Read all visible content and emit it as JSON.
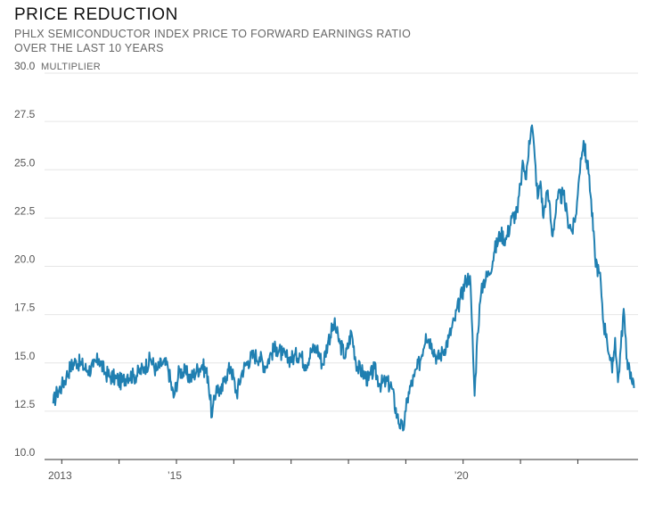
{
  "chart_data": {
    "type": "line",
    "title": "PRICE REDUCTION",
    "subtitle_line1": "PHLX SEMICONDUCTOR INDEX PRICE TO FORWARD EARNINGS RATIO",
    "subtitle_line2": "OVER THE LAST 10 YEARS",
    "unit_label": "MULTIPLIER",
    "ylim": [
      10.0,
      30.0
    ],
    "yticks": [
      "10.0",
      "12.5",
      "15.0",
      "17.5",
      "20.0",
      "22.5",
      "25.0",
      "27.5",
      "30.0"
    ],
    "xlim": [
      2012.7,
      2023.05
    ],
    "xticks": [
      {
        "label": "2013",
        "x": 2013
      },
      {
        "label": "’15",
        "x": 2015
      },
      {
        "label": "’20",
        "x": 2020
      }
    ],
    "xtick_marks": [
      2013,
      2014,
      2015,
      2016,
      2017,
      2018,
      2019,
      2020,
      2021,
      2022
    ],
    "series": [
      {
        "color": "#1f7fb1",
        "x": [
          2012.85,
          2012.92,
          2013.0,
          2013.08,
          2013.15,
          2013.25,
          2013.35,
          2013.45,
          2013.55,
          2013.65,
          2013.75,
          2013.85,
          2013.95,
          2014.05,
          2014.15,
          2014.25,
          2014.35,
          2014.45,
          2014.55,
          2014.65,
          2014.75,
          2014.85,
          2014.95,
          2015.05,
          2015.15,
          2015.25,
          2015.35,
          2015.45,
          2015.55,
          2015.62,
          2015.7,
          2015.78,
          2015.85,
          2015.95,
          2016.05,
          2016.15,
          2016.25,
          2016.35,
          2016.45,
          2016.55,
          2016.65,
          2016.75,
          2016.85,
          2016.95,
          2017.05,
          2017.15,
          2017.25,
          2017.35,
          2017.45,
          2017.55,
          2017.65,
          2017.75,
          2017.85,
          2017.95,
          2018.05,
          2018.15,
          2018.25,
          2018.35,
          2018.45,
          2018.55,
          2018.65,
          2018.75,
          2018.85,
          2018.95,
          2019.0,
          2019.05,
          2019.15,
          2019.25,
          2019.35,
          2019.45,
          2019.55,
          2019.65,
          2019.75,
          2019.85,
          2019.95,
          2020.05,
          2020.12,
          2020.15,
          2020.2,
          2020.25,
          2020.3,
          2020.35,
          2020.45,
          2020.55,
          2020.65,
          2020.75,
          2020.85,
          2020.95,
          2021.0,
          2021.05,
          2021.1,
          2021.15,
          2021.2,
          2021.25,
          2021.3,
          2021.35,
          2021.4,
          2021.45,
          2021.5,
          2021.55,
          2021.65,
          2021.75,
          2021.82,
          2021.9,
          2021.95,
          2022.0,
          2022.05,
          2022.1,
          2022.15,
          2022.2,
          2022.3,
          2022.4,
          2022.45,
          2022.5,
          2022.55,
          2022.6,
          2022.65,
          2022.7,
          2022.75,
          2022.8,
          2022.85,
          2022.9,
          2022.95,
          2022.98
        ],
        "values": [
          12.9,
          13.5,
          13.8,
          14.3,
          14.8,
          15.1,
          14.9,
          14.6,
          14.8,
          15.2,
          14.5,
          14.3,
          14.2,
          14.0,
          14.4,
          14.3,
          14.5,
          14.8,
          15.2,
          14.6,
          15.0,
          14.8,
          13.2,
          14.6,
          14.5,
          14.2,
          14.6,
          14.9,
          14.3,
          12.2,
          13.8,
          13.4,
          14.3,
          14.8,
          13.4,
          14.6,
          15.1,
          15.4,
          15.3,
          14.8,
          15.5,
          15.8,
          15.4,
          15.2,
          15.3,
          15.5,
          14.9,
          15.6,
          15.8,
          14.9,
          16.2,
          17.0,
          16.0,
          15.3,
          16.6,
          14.8,
          14.5,
          14.1,
          14.7,
          13.9,
          14.0,
          13.8,
          12.2,
          11.5,
          12.5,
          13.5,
          14.3,
          15.1,
          16.5,
          16.0,
          15.2,
          15.6,
          16.3,
          17.2,
          18.3,
          19.3,
          19.5,
          17.3,
          13.3,
          16.5,
          18.2,
          19.2,
          19.6,
          20.8,
          21.7,
          21.4,
          22.5,
          22.8,
          24.3,
          25.3,
          24.5,
          26.5,
          27.3,
          25.6,
          23.5,
          24.4,
          22.5,
          23.8,
          23.4,
          21.6,
          23.5,
          23.7,
          22.5,
          21.8,
          22.3,
          23.7,
          25.6,
          26.5,
          25.5,
          24.7,
          20.5,
          19.2,
          17.0,
          16.5,
          15.4,
          14.5,
          16.3,
          14.0,
          15.8,
          17.8,
          15.2,
          14.8,
          13.9,
          13.7
        ]
      }
    ],
    "grid": "horizontal"
  }
}
